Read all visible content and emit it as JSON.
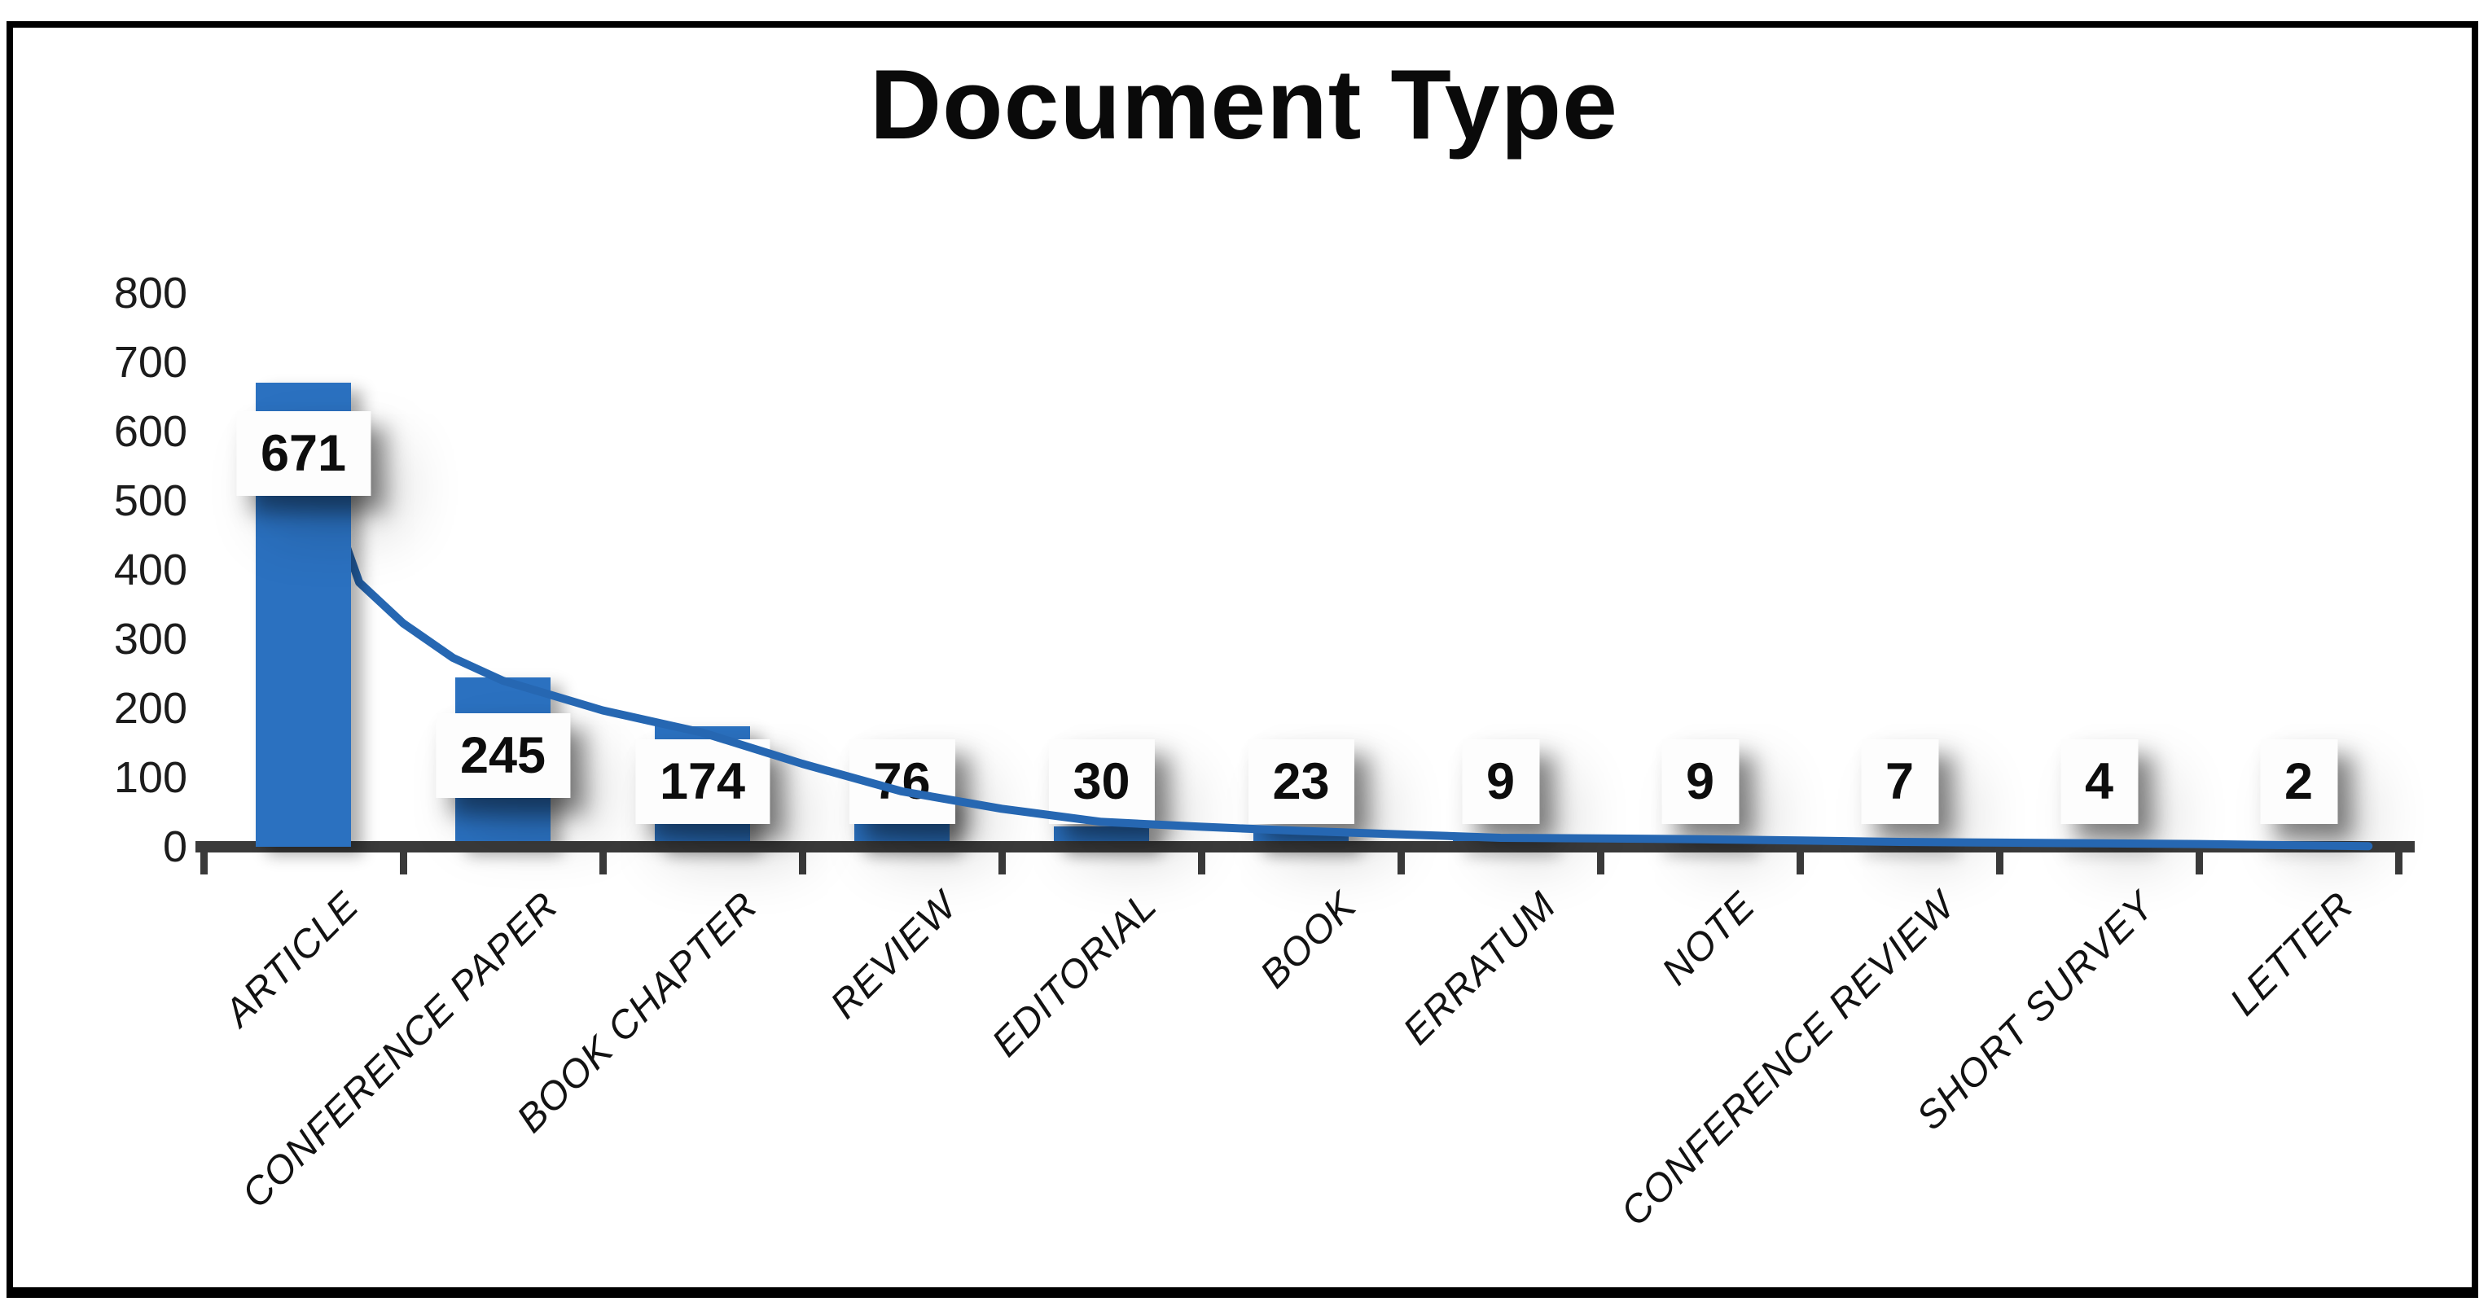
{
  "title": "Document Type",
  "chart_data": {
    "type": "bar",
    "title": "Document Type",
    "categories": [
      "ARTICLE",
      "CONFERENCE PAPER",
      "BOOK CHAPTER",
      "REVIEW",
      "EDITORIAL",
      "BOOK",
      "ERRATUM",
      "NOTE",
      "CONFERENCE REVIEW",
      "SHORT SURVEY",
      "LETTER"
    ],
    "values": [
      671,
      245,
      174,
      76,
      30,
      23,
      9,
      9,
      7,
      4,
      2
    ],
    "data_labels": [
      "671",
      "245",
      "174",
      "76",
      "30",
      "23",
      "9",
      "9",
      "7",
      "4",
      "2"
    ],
    "xlabel": "",
    "ylabel": "",
    "yticks": [
      0,
      100,
      200,
      300,
      400,
      500,
      600,
      700,
      800
    ],
    "ylim": [
      0,
      800
    ],
    "grid": false,
    "legend": false,
    "bar_color": "#2B71C0",
    "line_color": "#2667B2",
    "axis_color": "#3a3a3a",
    "trendline_points": [
      [
        0,
        610
      ],
      [
        0.28,
        382
      ],
      [
        0.5,
        323
      ],
      [
        0.75,
        273
      ],
      [
        1.0,
        240
      ],
      [
        1.5,
        197
      ],
      [
        2.0,
        165
      ],
      [
        2.5,
        120
      ],
      [
        3.0,
        80
      ],
      [
        3.5,
        55
      ],
      [
        4.0,
        36
      ],
      [
        4.5,
        29
      ],
      [
        5.0,
        23
      ],
      [
        5.5,
        18
      ],
      [
        6.0,
        13
      ],
      [
        6.5,
        12
      ],
      [
        7.0,
        11
      ],
      [
        7.5,
        9
      ],
      [
        8.0,
        7
      ],
      [
        8.5,
        6
      ],
      [
        9.0,
        5
      ],
      [
        9.5,
        4
      ],
      [
        10.0,
        2
      ],
      [
        10.35,
        1
      ]
    ]
  }
}
